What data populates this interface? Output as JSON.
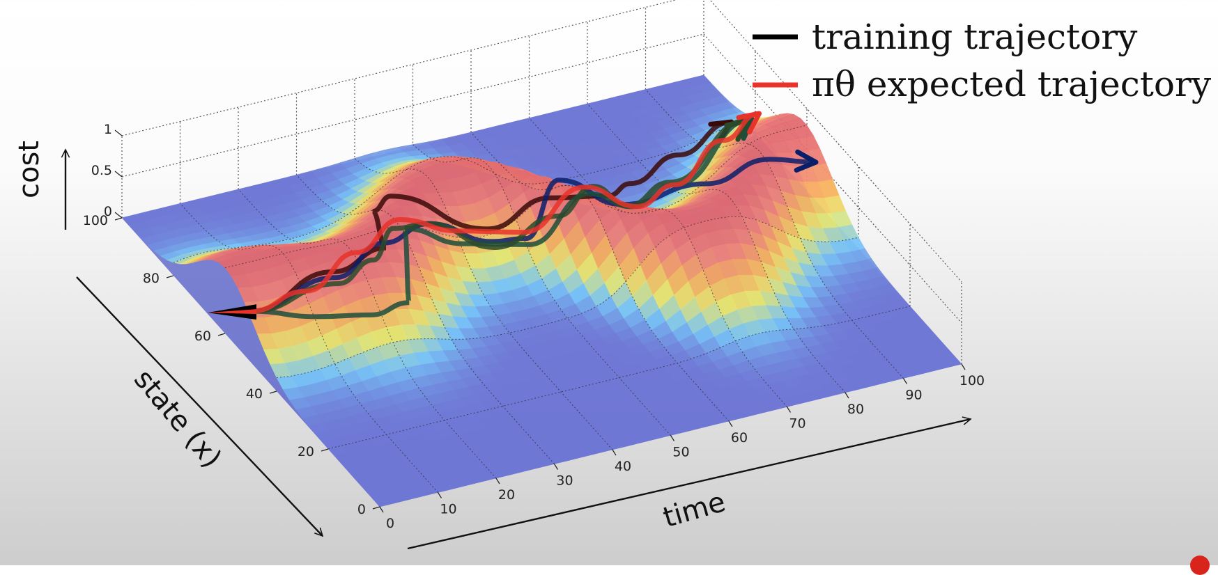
{
  "chart_data": {
    "type": "surface-3d",
    "title": "",
    "xlabel": "time",
    "ylabel": "state (x)",
    "zlabel": "cost",
    "xlim": [
      0,
      100
    ],
    "ylim": [
      0,
      100
    ],
    "zlim": [
      0,
      1
    ],
    "x_ticks": [
      "0",
      "10",
      "20",
      "30",
      "40",
      "50",
      "60",
      "70",
      "80",
      "90",
      "100"
    ],
    "y_ticks": [
      "0",
      "20",
      "40",
      "60",
      "80",
      "100"
    ],
    "z_ticks": [
      "0",
      "0.5",
      "1"
    ],
    "grid": true,
    "legend": {
      "position": "top-right",
      "entries": [
        {
          "label": "training trajectory",
          "color": "#000000"
        },
        {
          "label": "πθ expected trajectory",
          "color": "#e8322a"
        }
      ]
    },
    "surface_description_points": {
      "cost_level_low": 0,
      "cost_level_ridge": 0.8
    },
    "trajectories": [
      {
        "name": "training trajectory 1",
        "color": "#3a0a08",
        "t": [
          0,
          15,
          25,
          28,
          32,
          45,
          55,
          65,
          75,
          85,
          95
        ],
        "x": [
          50,
          52,
          54,
          66,
          68,
          60,
          58,
          58,
          72,
          76,
          78
        ]
      },
      {
        "name": "training trajectory 2",
        "color": "#0a1f6a",
        "t": [
          0,
          15,
          25,
          35,
          45,
          50,
          60,
          70,
          80,
          90,
          98
        ],
        "x": [
          50,
          51,
          55,
          60,
          58,
          56,
          66,
          64,
          54,
          52,
          52
        ]
      },
      {
        "name": "training trajectory 3",
        "color": "#1d4d3c",
        "t": [
          0,
          10,
          18,
          25,
          30,
          40,
          50,
          60,
          70,
          80,
          95
        ],
        "x": [
          50,
          47,
          44,
          45,
          58,
          58,
          55,
          54,
          60,
          66,
          70
        ]
      },
      {
        "name": "training trajectory 4",
        "color": "#2a4a2a",
        "t": [
          0,
          15,
          22,
          28,
          35,
          45,
          55,
          62,
          70,
          80,
          95
        ],
        "x": [
          50,
          50,
          52,
          58,
          60,
          57,
          55,
          57,
          62,
          68,
          72
        ]
      },
      {
        "name": "πθ expected trajectory",
        "color": "#e8322a",
        "t": [
          0,
          10,
          20,
          30,
          40,
          50,
          60,
          70,
          80,
          90,
          98
        ],
        "x": [
          50,
          51,
          54,
          60,
          60,
          57,
          56,
          58,
          66,
          70,
          74
        ]
      }
    ]
  }
}
